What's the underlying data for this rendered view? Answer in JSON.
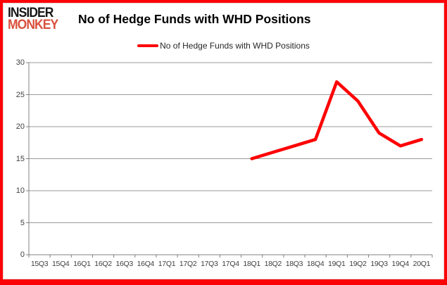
{
  "logo": {
    "line1": "INSIDER",
    "line2": "MONKEY"
  },
  "header": {
    "title": "No of Hedge Funds with WHD Positions"
  },
  "legend": {
    "label": "No of Hedge Funds with WHD Positions"
  },
  "colors": {
    "frame_red": "#fb0207",
    "series_red": "#fe0000",
    "logo_black": "#161616",
    "logo_orange": "#d9503c",
    "gridline": "#9a9a9a",
    "axis_line": "#808080",
    "tick_text": "#3f3f3f"
  },
  "chart_data": {
    "type": "line",
    "title": "No of Hedge Funds with WHD Positions",
    "categories": [
      "15Q3",
      "15Q4",
      "16Q1",
      "16Q2",
      "16Q3",
      "16Q4",
      "17Q1",
      "17Q2",
      "17Q3",
      "17Q4",
      "18Q1",
      "18Q2",
      "18Q3",
      "18Q4",
      "19Q1",
      "19Q2",
      "19Q3",
      "19Q4",
      "20Q1"
    ],
    "series": [
      {
        "name": "No of Hedge Funds with WHD Positions",
        "color": "#fe0000",
        "values": [
          null,
          null,
          null,
          null,
          null,
          null,
          null,
          null,
          null,
          null,
          15,
          16,
          17,
          18,
          27,
          24,
          19,
          17,
          18
        ]
      }
    ],
    "xlabel": "",
    "ylabel": "",
    "ylim": [
      0,
      30
    ],
    "ytick_step": 5,
    "grid": true,
    "legend_position": "top-center"
  }
}
